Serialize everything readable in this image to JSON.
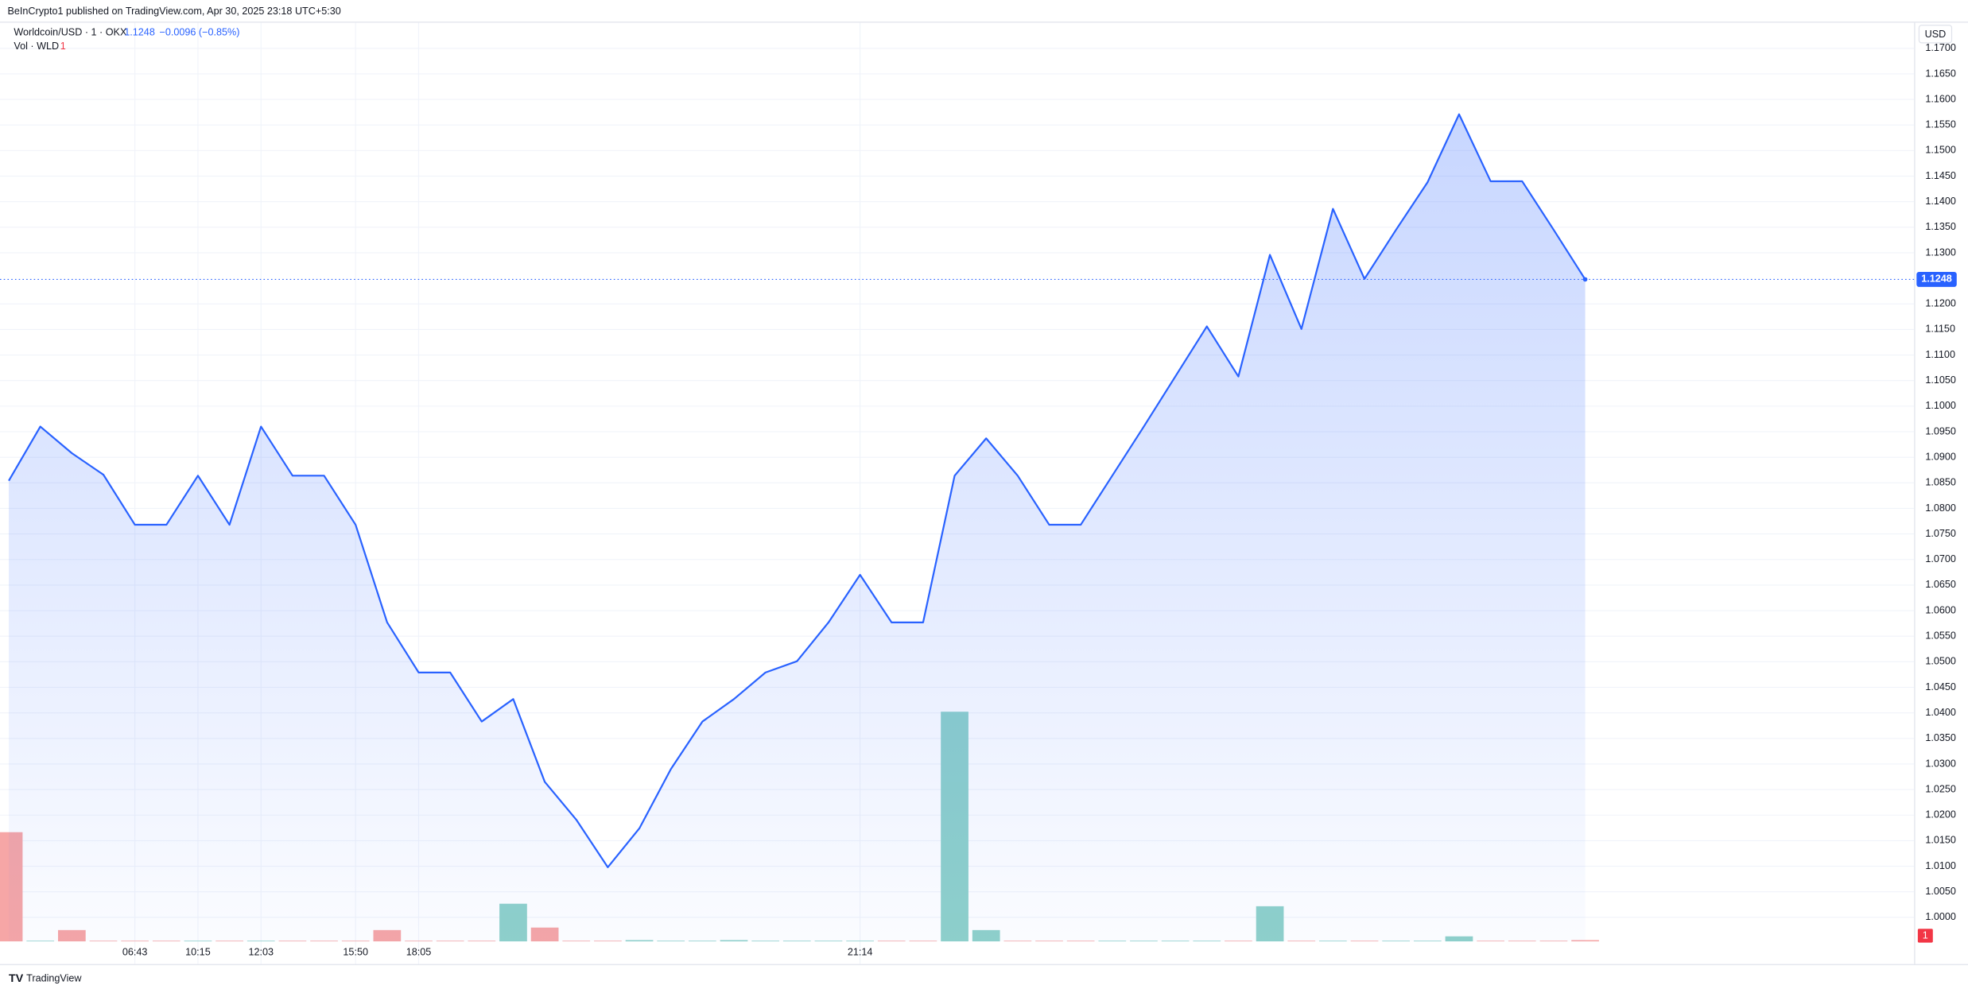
{
  "chart_data": {
    "type": "area",
    "header": "BeInCrypto1 published on TradingView.com, Apr 30, 2025 23:18 UTC+5:30",
    "symbol": "Worldcoin/USD · 1 · OKX",
    "last": "1.1248",
    "change": "−0.0096 (−0.85%)",
    "volume_title": "Vol · WLD",
    "currency": "USD",
    "footer": "TradingView",
    "color": "#2962ff",
    "up_color": "#8fd1ca",
    "down_color": "#f6a6a6",
    "grid": true,
    "categories": [
      null,
      null,
      null,
      null,
      "06:43",
      null,
      "10:15",
      null,
      "12:03",
      null,
      null,
      "15:50",
      null,
      "18:05",
      null,
      null,
      null,
      null,
      null,
      null,
      null,
      null,
      null,
      null,
      null,
      null,
      null,
      "21:14",
      null,
      null,
      null,
      null,
      null,
      null,
      null,
      null,
      null,
      null,
      null,
      null,
      null,
      null,
      null,
      null,
      null,
      null,
      null,
      null,
      null,
      null,
      null
    ],
    "values": [
      1.0854,
      1.096,
      1.0908,
      1.0866,
      1.0768,
      1.0768,
      1.0864,
      1.0768,
      1.096,
      1.0864,
      1.0864,
      1.0768,
      1.0577,
      1.0479,
      1.0479,
      1.0383,
      1.0427,
      1.0265,
      1.0191,
      1.0098,
      1.0174,
      1.029,
      1.0383,
      1.0427,
      1.0479,
      1.0501,
      1.0577,
      1.067,
      1.0577,
      1.0577,
      1.0864,
      1.0937,
      1.0864,
      1.0768,
      1.0768,
      1.0864,
      1.096,
      1.1058,
      1.1156,
      1.1058,
      1.1296,
      1.1151,
      1.1386,
      1.1249,
      1.1345,
      1.1438,
      1.1571,
      1.144,
      1.144,
      1.1345,
      1.1248
    ],
    "volume": [
      87,
      0.5,
      9,
      0.5,
      0.5,
      0.5,
      0.5,
      0.5,
      0.5,
      0.5,
      0.5,
      0.5,
      9,
      0.5,
      0.5,
      0.5,
      30,
      11,
      0.5,
      0.5,
      1,
      0.5,
      0.5,
      1,
      0.5,
      0.5,
      0.5,
      0.5,
      0.5,
      0.5,
      183,
      9,
      0.5,
      0.5,
      0.5,
      0.5,
      0.5,
      0.5,
      0.5,
      0.5,
      28,
      0.5,
      0.5,
      0.5,
      0.5,
      0.5,
      4,
      0.5,
      0.5,
      0.5,
      1
    ],
    "ylim": [
      0.9953,
      1.175
    ],
    "yticks": [
      {
        "value": 1.0,
        "label": "1.0000"
      },
      {
        "value": 1.005,
        "label": "1.0050"
      },
      {
        "value": 1.01,
        "label": "1.0100"
      },
      {
        "value": 1.015,
        "label": "1.0150"
      },
      {
        "value": 1.02,
        "label": "1.0200"
      },
      {
        "value": 1.025,
        "label": "1.0250"
      },
      {
        "value": 1.03,
        "label": "1.0300"
      },
      {
        "value": 1.035,
        "label": "1.0350"
      },
      {
        "value": 1.04,
        "label": "1.0400"
      },
      {
        "value": 1.045,
        "label": "1.0450"
      },
      {
        "value": 1.05,
        "label": "1.0500"
      },
      {
        "value": 1.055,
        "label": "1.0550"
      },
      {
        "value": 1.06,
        "label": "1.0600"
      },
      {
        "value": 1.065,
        "label": "1.0650"
      },
      {
        "value": 1.07,
        "label": "1.0700"
      },
      {
        "value": 1.075,
        "label": "1.0750"
      },
      {
        "value": 1.08,
        "label": "1.0800"
      },
      {
        "value": 1.085,
        "label": "1.0850"
      },
      {
        "value": 1.09,
        "label": "1.0900"
      },
      {
        "value": 1.095,
        "label": "1.0950"
      },
      {
        "value": 1.1,
        "label": "1.1000"
      },
      {
        "value": 1.105,
        "label": "1.1050"
      },
      {
        "value": 1.11,
        "label": "1.1100"
      },
      {
        "value": 1.115,
        "label": "1.1150"
      },
      {
        "value": 1.12,
        "label": "1.1200"
      },
      {
        "value": 1.13,
        "label": "1.1300"
      },
      {
        "value": 1.135,
        "label": "1.1350"
      },
      {
        "value": 1.14,
        "label": "1.1400"
      },
      {
        "value": 1.145,
        "label": "1.1450"
      },
      {
        "value": 1.15,
        "label": "1.1500"
      },
      {
        "value": 1.155,
        "label": "1.1550"
      },
      {
        "value": 1.16,
        "label": "1.1600"
      },
      {
        "value": 1.165,
        "label": "1.1650"
      },
      {
        "value": 1.17,
        "label": "1.1700"
      }
    ]
  }
}
